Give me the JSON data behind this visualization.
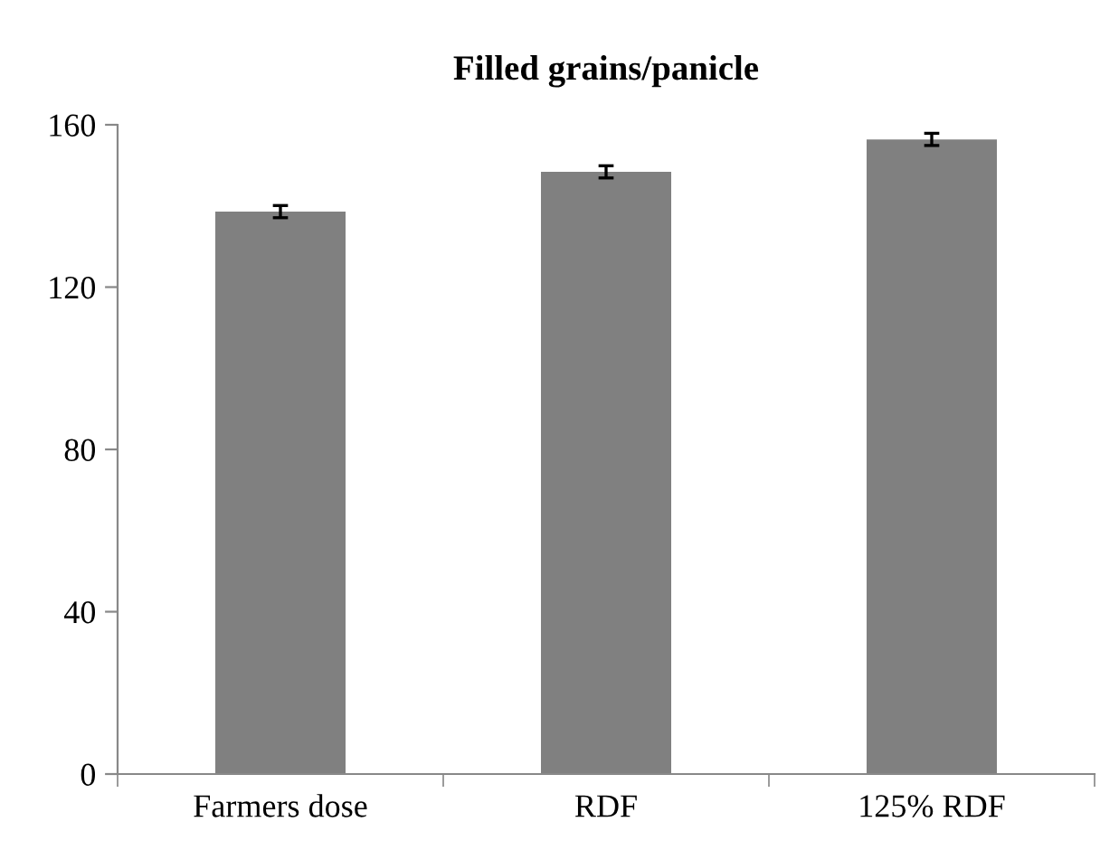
{
  "chart_data": {
    "type": "bar",
    "title": "Filled grains/panicle",
    "categories": [
      "Farmers dose",
      "RDF",
      "125% RDF"
    ],
    "values": [
      138.6,
      148.4,
      156.4
    ],
    "errors": [
      1.5,
      1.5,
      1.5
    ],
    "color": "#808080",
    "ylim": [
      0,
      160
    ],
    "yticks": [
      0,
      40,
      80,
      120,
      160
    ],
    "grid": false
  }
}
